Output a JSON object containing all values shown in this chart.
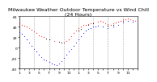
{
  "title": "Milwaukee Weather Outdoor Temperature vs Wind Chill\n(24 Hours)",
  "title_fontsize": 4.5,
  "background_color": "#ffffff",
  "plot_bg_color": "#ffffff",
  "grid_color": "#aaaaaa",
  "ylim": [
    -40,
    60
  ],
  "xlim": [
    0,
    24
  ],
  "temp_color": "#ff0000",
  "windchill_color": "#0000ff",
  "black_color": "#000000",
  "temp_x": [
    0,
    0.5,
    1,
    1.5,
    2,
    2.5,
    3,
    3.5,
    4,
    4.5,
    5,
    5.5,
    6,
    7,
    8,
    9,
    9.5,
    10,
    10.5,
    11,
    11.5,
    12,
    12.5,
    13,
    13.5,
    14,
    14.5,
    15,
    16,
    16.5,
    17,
    17.5,
    18,
    18.5,
    19,
    19.5,
    20,
    20.5,
    21,
    21.5,
    22,
    22.5,
    23,
    23.5
  ],
  "temp_y": [
    46,
    44,
    42,
    40,
    37,
    34,
    31,
    28,
    24,
    22,
    20,
    18,
    16,
    13,
    11,
    10,
    12,
    16,
    22,
    28,
    33,
    37,
    40,
    43,
    44,
    45,
    47,
    48,
    50,
    51,
    49,
    47,
    45,
    44,
    46,
    48,
    50,
    52,
    54,
    55,
    56,
    55,
    53,
    52
  ],
  "wc_x": [
    0,
    0.5,
    1,
    1.5,
    2,
    2.5,
    3,
    3.5,
    4,
    4.5,
    5,
    5.5,
    6,
    6.5,
    7,
    7.5,
    8,
    8.5,
    9,
    9.5,
    10,
    10.5,
    11,
    11.5,
    12,
    12.5,
    13,
    13.5,
    14,
    14.5,
    15,
    15.5,
    16,
    17,
    18,
    19,
    20,
    21,
    22,
    23
  ],
  "wc_y": [
    30,
    26,
    22,
    16,
    10,
    4,
    -2,
    -8,
    -14,
    -18,
    -22,
    -24,
    -28,
    -30,
    -32,
    -33,
    -30,
    -26,
    -20,
    -14,
    -8,
    -2,
    4,
    10,
    16,
    22,
    28,
    33,
    36,
    38,
    40,
    41,
    42,
    40,
    38,
    40,
    44,
    48,
    52,
    50
  ],
  "black_x": [
    5.5,
    6,
    8,
    8.5,
    12,
    12.5,
    14,
    15,
    18,
    19,
    21
  ],
  "black_y": [
    18,
    16,
    11,
    9,
    33,
    36,
    44,
    46,
    42,
    44,
    52
  ],
  "vgrid_positions": [
    0,
    3,
    6,
    9,
    12,
    15,
    18,
    21,
    24
  ],
  "xtick_positions": [
    0,
    1,
    2,
    3,
    4,
    5,
    6,
    7,
    8,
    9,
    10,
    11,
    12,
    13,
    14,
    15,
    16,
    17,
    18,
    19,
    20,
    21,
    22,
    23,
    24
  ],
  "xtick_labels": [
    "1",
    "",
    "3",
    "",
    "5",
    "",
    "7",
    "",
    "9",
    "",
    "11",
    "",
    "1",
    "",
    "3",
    "",
    "5",
    "",
    "7",
    "",
    "9",
    "",
    "11",
    "",
    ""
  ],
  "ytick_positions": [
    60,
    40,
    20,
    0,
    -20,
    -40
  ],
  "ytick_labels": [
    "60",
    "40",
    "20",
    "0",
    "-20",
    "-40"
  ],
  "marker_size": 1.5,
  "tick_fontsize": 3.2
}
